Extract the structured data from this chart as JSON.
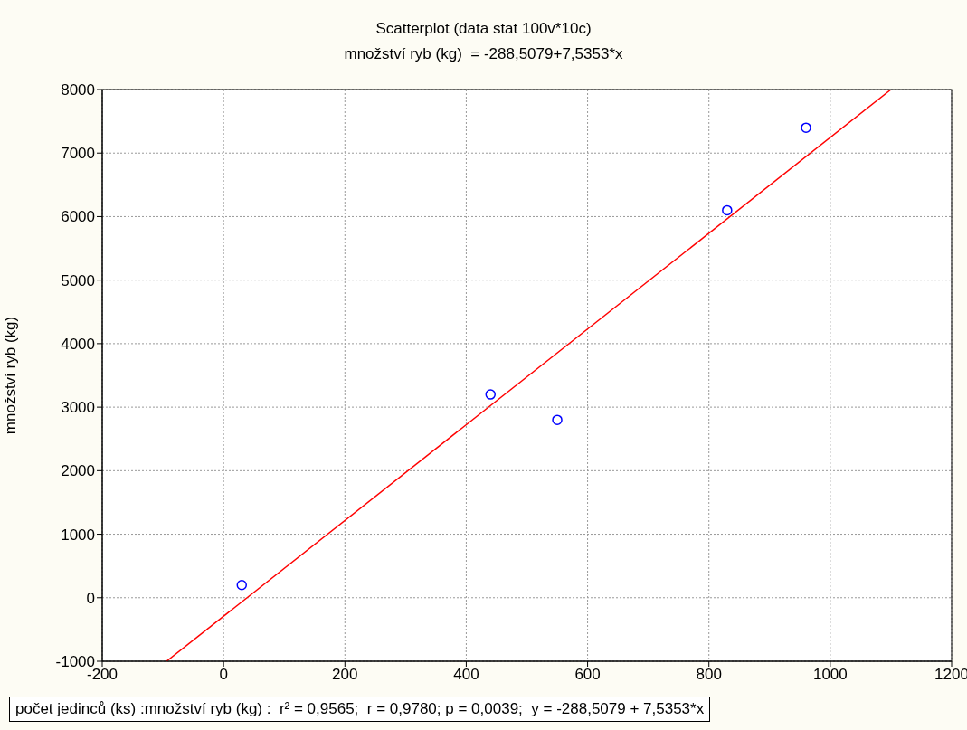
{
  "chart_data": {
    "type": "scatter",
    "title": "Scatterplot (data stat 100v*10c)",
    "subtitle": "množství ryb (kg)  = -288,5079+7,5353*x",
    "ylabel": "množství ryb (kg)",
    "annotations": [
      "počet jedinců (ks) :množství ryb (kg) :  r² = 0,9565;  r = 0,9780; p = 0,0039;  y = -288,5079 + 7,5353*x"
    ],
    "series": [
      {
        "color": "#0000ff",
        "marker": "circle",
        "x": [
          30,
          440,
          550,
          830,
          960
        ],
        "values": [
          200,
          3200,
          2800,
          6100,
          7400
        ]
      },
      {
        "type": "line",
        "color": "#ff0000",
        "x": [
          -94,
          1100
        ],
        "values": [
          -1000,
          8000
        ]
      }
    ],
    "xlim": [
      -200,
      1200
    ],
    "xticks": [
      -200,
      0,
      200,
      400,
      600,
      800,
      1000,
      1200
    ],
    "ylim": [
      -1000,
      8000
    ],
    "yticks": [
      -1000,
      0,
      1000,
      2000,
      3000,
      4000,
      5000,
      6000,
      7000,
      8000
    ],
    "grid": true,
    "legend": false
  }
}
